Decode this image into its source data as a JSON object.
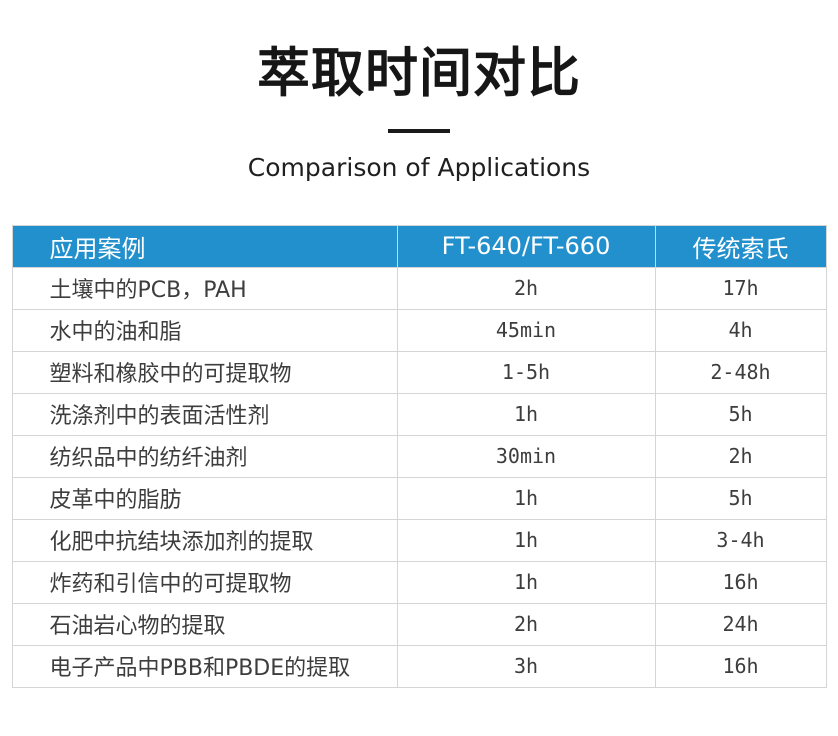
{
  "page": {
    "title": "萃取时间对比",
    "subtitle": "Comparison of Applications"
  },
  "table": {
    "headers": [
      "应用案例",
      "FT-640/FT-660",
      "传统索氏"
    ],
    "rows": [
      [
        "土壤中的PCB，PAH",
        "2h",
        "17h"
      ],
      [
        "水中的油和脂",
        "45min",
        "4h"
      ],
      [
        "塑料和橡胶中的可提取物",
        "1-5h",
        "2-48h"
      ],
      [
        "洗涤剂中的表面活性剂",
        "1h",
        "5h"
      ],
      [
        "纺织品中的纺纤油剂",
        "30min",
        "2h"
      ],
      [
        "皮革中的脂肪",
        "1h",
        "5h"
      ],
      [
        "化肥中抗结块添加剂的提取",
        "1h",
        "3-4h"
      ],
      [
        "炸药和引信中的可提取物",
        "1h",
        "16h"
      ],
      [
        "石油岩心物的提取",
        "2h",
        "24h"
      ],
      [
        "电子产品中PBB和PBDE的提取",
        "3h",
        "16h"
      ]
    ]
  },
  "colors": {
    "header_bg": "#2190cd",
    "header_text": "#ffffff",
    "border": "#d5d5d5",
    "text": "#3d3d3d",
    "title": "#161616"
  }
}
